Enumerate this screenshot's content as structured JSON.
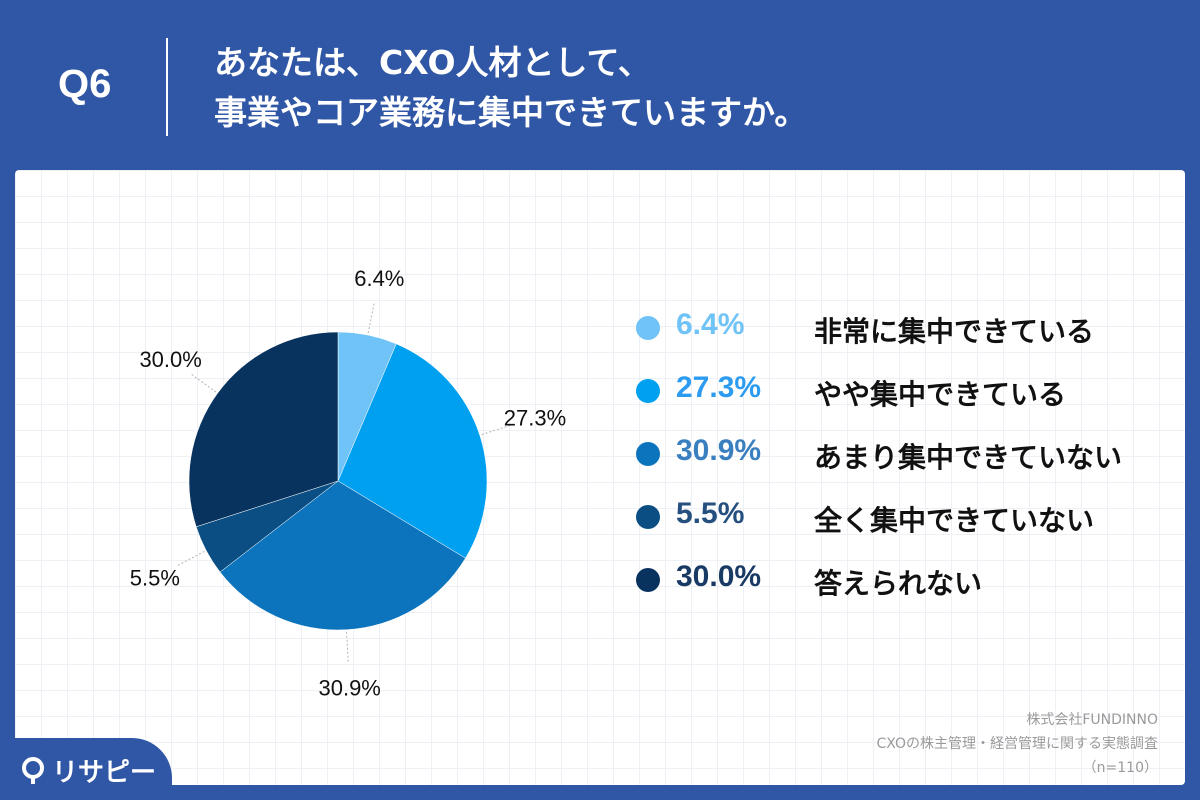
{
  "header": {
    "question_number": "Q6",
    "title_lines": [
      "あなたは、CXO人材として、",
      "事業やコア業務に集中できていますか。"
    ]
  },
  "chart_data": {
    "type": "pie",
    "title": "",
    "slices": [
      {
        "label": "非常に集中できている",
        "value": 6.4,
        "display": "6.4%",
        "color": "#6fc3f7"
      },
      {
        "label": "やや集中できている",
        "value": 27.3,
        "display": "27.3%",
        "color": "#00a0f0"
      },
      {
        "label": "あまり集中できていない",
        "value": 30.9,
        "display": "30.9%",
        "color": "#0b74bd"
      },
      {
        "label": "全く集中できていない",
        "value": 5.5,
        "display": "5.5%",
        "color": "#0a4e83"
      },
      {
        "label": "答えられない",
        "value": 30.0,
        "display": "30.0%",
        "color": "#08335f"
      }
    ],
    "legend_placement": "right",
    "legend_pct_colors": [
      "#6fc3f7",
      "#2d9cf0",
      "#3a7fc0",
      "#244f7f",
      "#1a3a66"
    ]
  },
  "source": {
    "company": "株式会社FUNDINNO",
    "survey": "CXOの株主管理・経営管理に関する実態調査",
    "sample": "（n=110）"
  },
  "logo": {
    "text": "リサピー",
    "color": "#ffffff"
  }
}
